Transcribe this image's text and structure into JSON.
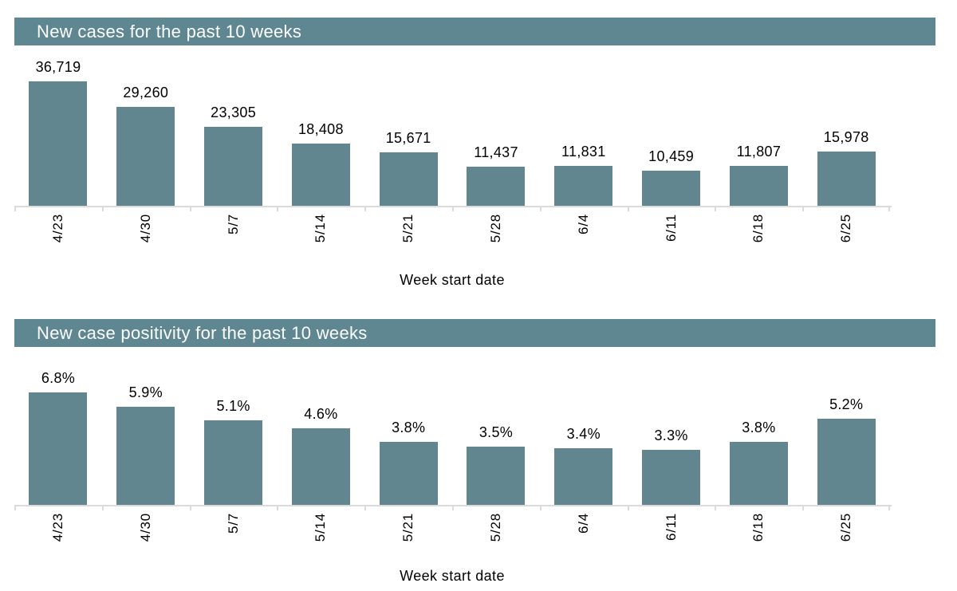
{
  "theme": {
    "background": "#FFFFFF",
    "accent_teal": "#61868F",
    "header_bg": "#5E8791",
    "header_text": "#FFFFFF",
    "axis_line": "#DBDBDB",
    "label_color": "#000000"
  },
  "chart_data": [
    {
      "type": "bar",
      "title": "New cases for the past 10 weeks",
      "xlabel": "Week start date",
      "categories": [
        "4/23",
        "4/30",
        "5/7",
        "5/14",
        "5/21",
        "5/28",
        "6/4",
        "6/11",
        "6/18",
        "6/25"
      ],
      "values": [
        36719,
        29260,
        23305,
        18408,
        15671,
        11437,
        11831,
        10459,
        11807,
        15978
      ],
      "value_labels": [
        "36,719",
        "29,260",
        "23,305",
        "18,408",
        "15,671",
        "11,437",
        "11,831",
        "10,459",
        "11,807",
        "15,978"
      ],
      "ylim": [
        0,
        43000
      ],
      "grid": false,
      "legend": "none",
      "bar_color": "#61868F",
      "tick_label_rotation": -90
    },
    {
      "type": "bar",
      "title": "New case positivity for the past 10 weeks",
      "xlabel": "Week start date",
      "categories": [
        "4/23",
        "4/30",
        "5/7",
        "5/14",
        "5/21",
        "5/28",
        "6/4",
        "6/11",
        "6/18",
        "6/25"
      ],
      "values": [
        6.8,
        5.9,
        5.1,
        4.6,
        3.8,
        3.5,
        3.4,
        3.3,
        3.8,
        5.2
      ],
      "value_labels": [
        "6.8%",
        "5.9%",
        "5.1%",
        "4.6%",
        "3.8%",
        "3.5%",
        "3.4%",
        "3.3%",
        "3.8%",
        "5.2%"
      ],
      "ylim": [
        0,
        8.8
      ],
      "grid": false,
      "legend": "none",
      "bar_color": "#61868F",
      "tick_label_rotation": -90
    }
  ]
}
